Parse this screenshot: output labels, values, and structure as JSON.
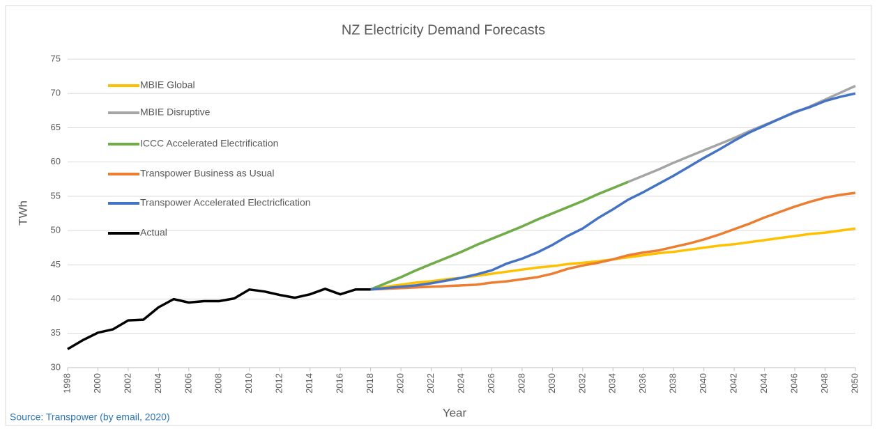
{
  "chart_data": {
    "type": "line",
    "title": "NZ Electricity Demand Forecasts",
    "x_label": "Year",
    "y_label": "TWh",
    "source": "Source: Transpower (by email, 2020)",
    "x": [
      1998,
      1999,
      2000,
      2001,
      2002,
      2003,
      2004,
      2005,
      2006,
      2007,
      2008,
      2009,
      2010,
      2011,
      2012,
      2013,
      2014,
      2015,
      2016,
      2017,
      2018,
      2019,
      2020,
      2021,
      2022,
      2023,
      2024,
      2025,
      2026,
      2027,
      2028,
      2029,
      2030,
      2031,
      2032,
      2033,
      2034,
      2035,
      2036,
      2037,
      2038,
      2039,
      2040,
      2041,
      2042,
      2043,
      2044,
      2045,
      2046,
      2047,
      2048,
      2049,
      2050
    ],
    "xlim": [
      1998,
      2050
    ],
    "xticks": [
      1998,
      2000,
      2002,
      2004,
      2006,
      2008,
      2010,
      2012,
      2014,
      2016,
      2018,
      2020,
      2022,
      2024,
      2026,
      2028,
      2030,
      2032,
      2034,
      2036,
      2038,
      2040,
      2042,
      2044,
      2046,
      2048,
      2050
    ],
    "ylim": [
      30,
      75
    ],
    "yticks": [
      30,
      35,
      40,
      45,
      50,
      55,
      60,
      65,
      70,
      75
    ],
    "grid": true,
    "legend": "upper left",
    "series": [
      {
        "name": "MBIE Global",
        "color": "#ffc000",
        "values": [
          null,
          null,
          null,
          null,
          null,
          null,
          null,
          null,
          null,
          null,
          null,
          null,
          null,
          null,
          null,
          null,
          null,
          null,
          null,
          null,
          41.4,
          41.8,
          42.1,
          42.4,
          42.6,
          42.9,
          43.1,
          43.4,
          43.7,
          44.0,
          44.3,
          44.6,
          44.8,
          45.1,
          45.3,
          45.5,
          45.8,
          46.1,
          46.4,
          46.7,
          46.9,
          47.2,
          47.5,
          47.8,
          48.0,
          48.3,
          48.6,
          48.9,
          49.2,
          49.5,
          49.7,
          50.0,
          50.3
        ]
      },
      {
        "name": "MBIE Disruptive",
        "color": "#a5a5a5",
        "values": [
          null,
          null,
          null,
          null,
          null,
          null,
          null,
          null,
          null,
          null,
          null,
          null,
          null,
          null,
          null,
          null,
          null,
          null,
          null,
          null,
          41.4,
          42.3,
          43.2,
          44.2,
          45.1,
          46.0,
          46.9,
          47.9,
          48.8,
          49.7,
          50.6,
          51.6,
          52.5,
          53.4,
          54.3,
          55.3,
          56.2,
          57.1,
          58.0,
          58.9,
          59.9,
          60.8,
          61.7,
          62.6,
          63.5,
          64.5,
          65.4,
          66.3,
          67.2,
          68.1,
          69.1,
          70.1,
          71.1
        ]
      },
      {
        "name": "ICCC Accelerated Electrification",
        "color": "#70ad47",
        "values": [
          null,
          null,
          null,
          null,
          null,
          null,
          null,
          null,
          null,
          null,
          null,
          null,
          null,
          null,
          null,
          null,
          null,
          null,
          null,
          null,
          41.4,
          42.3,
          43.2,
          44.2,
          45.1,
          46.0,
          46.9,
          47.9,
          48.8,
          49.7,
          50.6,
          51.6,
          52.5,
          53.4,
          54.3,
          55.3,
          56.2,
          57.1,
          null,
          null,
          null,
          null,
          null,
          null,
          null,
          null,
          null,
          null,
          null,
          null,
          null,
          null,
          null
        ]
      },
      {
        "name": "Transpower Business as Usual",
        "color": "#ed7d31",
        "values": [
          null,
          null,
          null,
          null,
          null,
          null,
          null,
          null,
          null,
          null,
          null,
          null,
          null,
          null,
          null,
          null,
          null,
          null,
          null,
          null,
          41.4,
          41.5,
          41.6,
          41.7,
          41.8,
          41.9,
          42.0,
          42.1,
          42.4,
          42.6,
          42.9,
          43.2,
          43.7,
          44.4,
          44.9,
          45.3,
          45.8,
          46.4,
          46.8,
          47.1,
          47.6,
          48.1,
          48.7,
          49.4,
          50.2,
          51.0,
          51.9,
          52.7,
          53.5,
          54.2,
          54.8,
          55.2,
          55.5
        ]
      },
      {
        "name": "Transpower Accelerated Electricfication",
        "color": "#4472c4",
        "values": [
          null,
          null,
          null,
          null,
          null,
          null,
          null,
          null,
          null,
          null,
          null,
          null,
          null,
          null,
          null,
          null,
          null,
          null,
          null,
          null,
          41.4,
          41.6,
          41.8,
          42.0,
          42.3,
          42.7,
          43.1,
          43.6,
          44.2,
          45.2,
          45.9,
          46.8,
          47.9,
          49.2,
          50.3,
          51.8,
          53.1,
          54.5,
          55.6,
          56.8,
          58.0,
          59.3,
          60.6,
          61.8,
          63.1,
          64.3,
          65.3,
          66.3,
          67.3,
          68.0,
          68.9,
          69.5,
          70.0
        ]
      },
      {
        "name": "Actual",
        "color": "#000000",
        "values": [
          32.7,
          34.0,
          35.1,
          35.6,
          36.9,
          37.0,
          38.8,
          40.0,
          39.5,
          39.7,
          39.7,
          40.1,
          41.4,
          41.1,
          40.6,
          40.2,
          40.7,
          41.5,
          40.7,
          41.4,
          41.4,
          null,
          null,
          null,
          null,
          null,
          null,
          null,
          null,
          null,
          null,
          null,
          null,
          null,
          null,
          null,
          null,
          null,
          null,
          null,
          null,
          null,
          null,
          null,
          null,
          null,
          null,
          null,
          null,
          null,
          null,
          null,
          null
        ]
      }
    ]
  }
}
